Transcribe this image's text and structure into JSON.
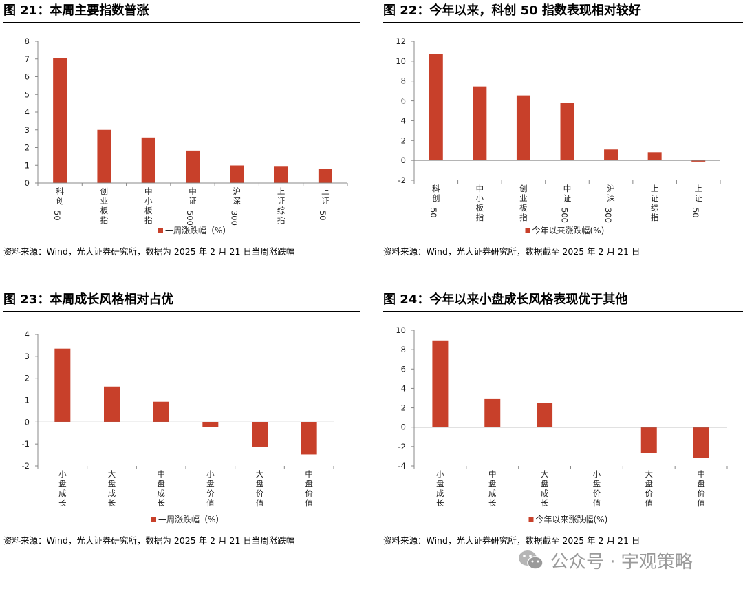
{
  "watermark": {
    "icon": "wechat-icon",
    "text": "公众号 · 宇观策略"
  },
  "colors": {
    "bar": "#C8402A",
    "axis": "#888888",
    "rule": "#000000"
  },
  "panels": [
    {
      "title": "图 21：本周主要指数普涨",
      "source": "资料来源：Wind，光大证券研究所，数据为 2025 年 2 月 21 日当周涨跌幅",
      "chart_data": {
        "type": "bar",
        "categories": [
          "科创50",
          "创业板指",
          "中小板指",
          "中证500",
          "沪深300",
          "上证综指",
          "上证50"
        ],
        "series": [
          {
            "name": "一周涨跌幅（%）",
            "values": [
              7.05,
              3.0,
              2.57,
              1.83,
              0.99,
              0.96,
              0.79
            ]
          }
        ],
        "ylim": [
          0,
          8
        ],
        "yticks": [
          0,
          1,
          2,
          3,
          4,
          5,
          6,
          7,
          8
        ],
        "legend": "bottom"
      }
    },
    {
      "title": "图 22：今年以来，科创 50 指数表现相对较好",
      "source": "资料来源：Wind，光大证券研究所，数据截至 2025 年 2 月 21 日",
      "chart_data": {
        "type": "bar",
        "categories": [
          "科创50",
          "中小板指",
          "创业板指",
          "中证500",
          "沪深300",
          "上证综指",
          "上证50"
        ],
        "series": [
          {
            "name": "今年以来涨跌幅(%)",
            "values": [
              10.7,
              7.45,
              6.55,
              5.8,
              1.1,
              0.82,
              -0.12
            ]
          }
        ],
        "ylim": [
          -2,
          12
        ],
        "yticks": [
          -2,
          0,
          2,
          4,
          6,
          8,
          10,
          12
        ],
        "legend": "bottom"
      }
    },
    {
      "title": "图 23：本周成长风格相对占优",
      "source": "资料来源：Wind，光大证券研究所，数据为 2025 年 2 月 21 日当周涨跌幅",
      "chart_data": {
        "type": "bar",
        "categories": [
          "小盘成长",
          "大盘成长",
          "中盘成长",
          "小盘价值",
          "大盘价值",
          "中盘价值"
        ],
        "series": [
          {
            "name": "一周涨跌幅（%）",
            "values": [
              3.35,
              1.62,
              0.93,
              -0.22,
              -1.12,
              -1.48
            ]
          }
        ],
        "ylim": [
          -2,
          4
        ],
        "yticks": [
          -2,
          -1,
          0,
          1,
          2,
          3,
          4
        ],
        "legend": "bottom"
      }
    },
    {
      "title": "图 24：今年以来小盘成长风格表现优于其他",
      "source": "资料来源：Wind，光大证券研究所，数据截至 2025 年 2 月 21 日",
      "chart_data": {
        "type": "bar",
        "categories": [
          "小盘成长",
          "中盘成长",
          "大盘成长",
          "小盘价值",
          "大盘价值",
          "中盘价值"
        ],
        "series": [
          {
            "name": "今年以来涨跌幅(%)",
            "values": [
              8.95,
              2.9,
              2.5,
              0.0,
              -2.7,
              -3.2
            ]
          }
        ],
        "ylim": [
          -4,
          10
        ],
        "yticks": [
          -4,
          -2,
          0,
          2,
          4,
          6,
          8,
          10
        ],
        "legend": "bottom"
      }
    }
  ]
}
